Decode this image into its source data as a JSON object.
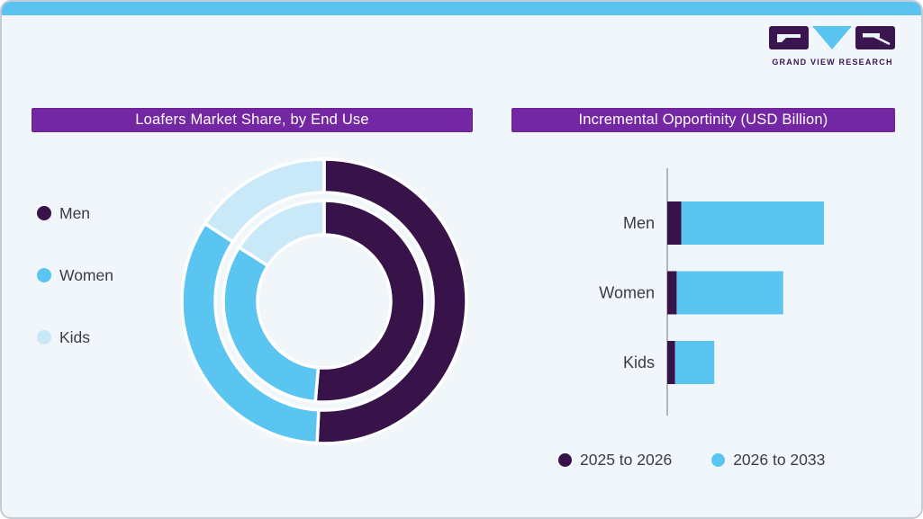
{
  "logo": {
    "text": "GRAND VIEW RESEARCH"
  },
  "theme": {
    "top_bar_blue": "#5BC3EF",
    "banner_purple": "#7427A3",
    "dark_purple": "#371349",
    "mid_blue": "#5BC5F2",
    "light_blue": "#C9E8F8",
    "card_bg": "#F0F6FA",
    "card_border": "#C6CCD3",
    "text_dark": "#3B3B4B",
    "axis_grey": "#9CA3AA",
    "logo_purple": "#3A1550"
  },
  "donut": {
    "title": "Loafers Market Share, by End Use",
    "legend": [
      {
        "label": "Men",
        "color": "#371349"
      },
      {
        "label": "Women",
        "color": "#5BC5F2"
      },
      {
        "label": "Kids",
        "color": "#C9E8F8"
      }
    ]
  },
  "bars": {
    "title": "Incremental Opportinity (USD Billion)",
    "legend": [
      {
        "label": "2025 to 2026",
        "color": "#371349"
      },
      {
        "label": "2026 to 2033",
        "color": "#5BC5F2"
      }
    ]
  },
  "chart_data": [
    {
      "type": "pie",
      "variant": "double-ring-donut",
      "title": "Loafers Market Share, by End Use",
      "categories": [
        "Men",
        "Women",
        "Kids"
      ],
      "series": [
        {
          "name": "outer-ring",
          "values": [
            50.8,
            33.4,
            15.8
          ]
        },
        {
          "name": "inner-ring",
          "values": [
            51.4,
            32.6,
            16.0
          ]
        }
      ],
      "units": "percent share (estimated from arc angles; no numeric labels shown)",
      "colors": [
        "#371349",
        "#5BC5F2",
        "#C9E8F8"
      ],
      "start_angle_deg": 0,
      "legend_position": "left"
    },
    {
      "type": "bar",
      "orientation": "horizontal",
      "stacked": true,
      "title": "Incremental Opportinity (USD Billion)",
      "categories": [
        "Men",
        "Women",
        "Kids"
      ],
      "series": [
        {
          "name": "2025 to 2026",
          "values": [
            0.09,
            0.06,
            0.05
          ]
        },
        {
          "name": "2026 to 2033",
          "values": [
            0.91,
            0.68,
            0.25
          ]
        }
      ],
      "units": "relative bar length (axis values not shown; Men total normalized to 1.0)",
      "colors": [
        "#371349",
        "#5BC5F2"
      ],
      "xlim": [
        0,
        1.0
      ],
      "grid": false,
      "legend_position": "bottom"
    }
  ]
}
